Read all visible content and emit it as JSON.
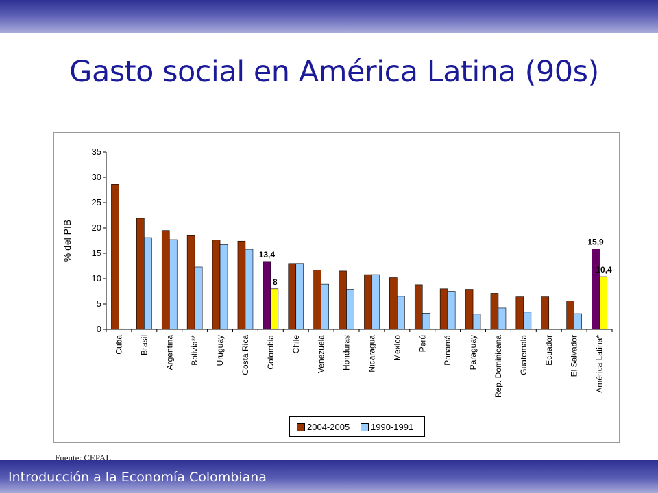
{
  "slide": {
    "title": "Gasto social en América Latina (90s)",
    "source": "Fuente: CEPAL",
    "footer": "Introducción a la Economía Colombiana"
  },
  "colors": {
    "band": "#2e3192",
    "title": "#1b1b99",
    "series_2004": "#993300",
    "series_1990": "#99ccff",
    "highlight_2004": "#660066",
    "highlight_1990": "#ffff00"
  },
  "chart_data": {
    "type": "bar",
    "ylabel": "% del PIB",
    "ylim": [
      0,
      35
    ],
    "yticks": [
      0,
      5,
      10,
      15,
      20,
      25,
      30,
      35
    ],
    "categories": [
      "Cuba",
      "Brasil",
      "Argentina",
      "Bolivia**",
      "Uruguay",
      "Costa Rica",
      "Colombia",
      "Chile",
      "Venezuela",
      "Honduras",
      "Nicaragua",
      "Mexico",
      "Perú",
      "Panamá",
      "Paraguay",
      "Rep. Dominicana",
      "Guatemala",
      "Ecuador",
      "El Salvador",
      "América Latina*"
    ],
    "series": [
      {
        "name": "2004-2005",
        "values": [
          28.6,
          21.9,
          19.5,
          18.6,
          17.6,
          17.4,
          13.4,
          13.0,
          11.7,
          11.5,
          10.8,
          10.2,
          8.8,
          8.0,
          7.9,
          7.1,
          6.4,
          6.4,
          5.6,
          15.9
        ]
      },
      {
        "name": "1990-1991",
        "values": [
          null,
          18.1,
          17.7,
          12.3,
          16.7,
          15.8,
          8.0,
          13.0,
          8.9,
          7.9,
          10.8,
          6.5,
          3.2,
          7.5,
          3.0,
          4.2,
          3.4,
          null,
          3.1,
          10.4
        ]
      }
    ],
    "highlight_categories": [
      "Colombia",
      "América Latina*"
    ],
    "data_labels": [
      {
        "category": "Colombia",
        "series": "2004-2005",
        "text": "13,4"
      },
      {
        "category": "Colombia",
        "series": "1990-1991",
        "text": "8"
      },
      {
        "category": "América Latina*",
        "series": "2004-2005",
        "text": "15,9"
      },
      {
        "category": "América Latina*",
        "series": "1990-1991",
        "text": "10,4"
      }
    ],
    "legend_position": "bottom-center",
    "grid": false
  }
}
